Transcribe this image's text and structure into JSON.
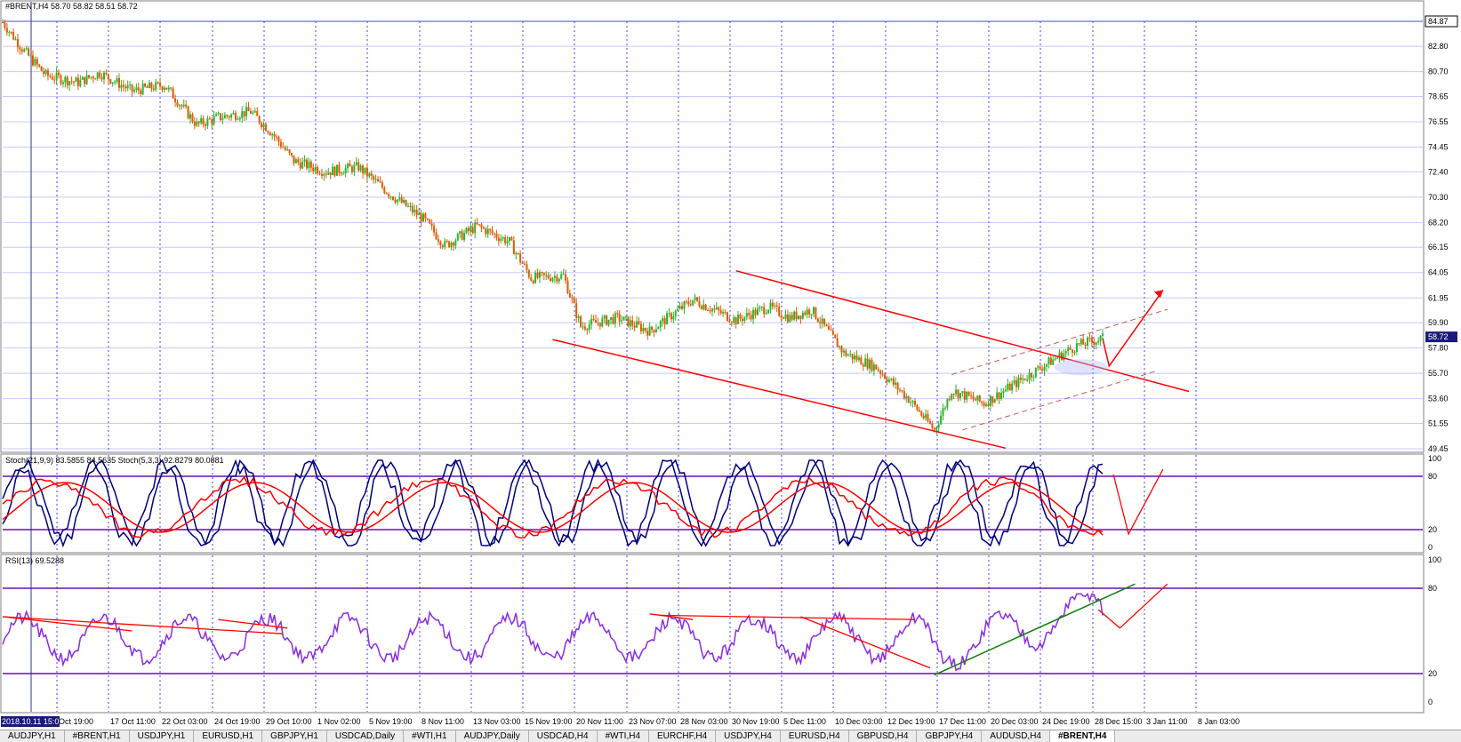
{
  "window": {
    "title": "#BRENT,H4",
    "ohlc": "58.70 58.82 58.51 58.72",
    "current_price": "58.72",
    "top_price": "84.87"
  },
  "indicators": {
    "stoch_label": "Stoch(21,9,9) 83.5855 84.5635  Stoch(5,3,3) 92.8279 80.0881",
    "rsi_label": "RSI(13) 69.5288"
  },
  "price_axis": [
    "82.80",
    "80.70",
    "78.65",
    "76.55",
    "74.45",
    "72.40",
    "70.30",
    "68.20",
    "66.15",
    "64.05",
    "61.95",
    "59.90",
    "57.80",
    "55.70",
    "53.60",
    "51.55",
    "49.45"
  ],
  "stoch_axis": [
    "100",
    "80",
    "20",
    "0"
  ],
  "rsi_axis": [
    "100",
    "80",
    "20",
    "0"
  ],
  "time_axis": [
    "2018.10.11 15:00",
    "Oct 19:00",
    "17 Oct 11:00",
    "22 Oct 03:00",
    "24 Oct 19:00",
    "29 Oct 10:00",
    "1 Nov 02:00",
    "5 Nov 19:00",
    "8 Nov 11:00",
    "13 Nov 03:00",
    "15 Nov 19:00",
    "20 Nov 11:00",
    "23 Nov 07:00",
    "28 Nov 03:00",
    "30 Nov 19:00",
    "5 Dec 11:00",
    "10 Dec 03:00",
    "12 Dec 19:00",
    "17 Dec 11:00",
    "20 Dec 03:00",
    "24 Dec 19:00",
    "28 Dec 15:00",
    "3 Jan 11:00",
    "8 Jan 03:00"
  ],
  "tabs": [
    "AUDJPY,H1",
    "#BRENT,H1",
    "USDJPY,H1",
    "EURUSD,H1",
    "GBPJPY,H1",
    "USDCAD,Daily",
    "#WTI,H1",
    "AUDJPY,Daily",
    "USDCAD,H4",
    "#WTI,H4",
    "EURCHF,H4",
    "USDJPY,H4",
    "EURUSD,H4",
    "GBPUSD,H4",
    "GBPJPY,H4",
    "AUDUSD,H4",
    "#BRENT,H4"
  ],
  "active_tab": 16,
  "colors": {
    "bull": "#2bb52b",
    "bear": "#e05a00",
    "trend": "#ff0000",
    "stoch_main": "#00007f",
    "stoch_signal": "#ff0000",
    "rsi": "#8a2be2",
    "level": "#6a0dad",
    "support": "#107c10"
  },
  "chart_data": {
    "type": "candlestick",
    "symbol": "#BRENT",
    "timeframe": "H4",
    "ylim": [
      49.45,
      84.87
    ],
    "trend_path": [
      [
        0,
        84.8
      ],
      [
        10,
        82.4
      ],
      [
        20,
        80.4
      ],
      [
        35,
        79.8
      ],
      [
        45,
        80.6
      ],
      [
        60,
        79.1
      ],
      [
        75,
        79.6
      ],
      [
        90,
        76.3
      ],
      [
        100,
        76.9
      ],
      [
        115,
        77.4
      ],
      [
        125,
        75.6
      ],
      [
        135,
        73.3
      ],
      [
        150,
        72.4
      ],
      [
        165,
        72.8
      ],
      [
        180,
        70.5
      ],
      [
        195,
        68.5
      ],
      [
        205,
        66.3
      ],
      [
        220,
        67.9
      ],
      [
        235,
        66.6
      ],
      [
        245,
        63.6
      ],
      [
        260,
        63.8
      ],
      [
        268,
        59.6
      ],
      [
        285,
        60.3
      ],
      [
        300,
        59.2
      ],
      [
        320,
        61.8
      ],
      [
        340,
        60.1
      ],
      [
        355,
        61.2
      ],
      [
        365,
        60.3
      ],
      [
        375,
        61.0
      ],
      [
        390,
        57.4
      ],
      [
        405,
        56.2
      ],
      [
        420,
        53.6
      ],
      [
        432,
        51.0
      ],
      [
        440,
        54.3
      ],
      [
        455,
        53.2
      ],
      [
        470,
        54.9
      ],
      [
        485,
        56.6
      ],
      [
        498,
        58.0
      ],
      [
        510,
        58.6
      ]
    ],
    "channel_lines": [
      {
        "from": [
          255,
          58.5
        ],
        "to": [
          465,
          49.5
        ]
      },
      {
        "from": [
          340,
          64.2
        ],
        "to": [
          550,
          54.2
        ]
      },
      {
        "from": [
          440,
          55.6
        ],
        "to": [
          540,
          61.0
        ]
      },
      {
        "from": [
          445,
          51.0
        ],
        "to": [
          535,
          55.9
        ]
      }
    ],
    "projection": [
      [
        510,
        58.6
      ],
      [
        513,
        56.3
      ],
      [
        538,
        62.6
      ]
    ],
    "stoch_levels": [
      80,
      20
    ],
    "rsi_levels": [
      80,
      20
    ]
  }
}
